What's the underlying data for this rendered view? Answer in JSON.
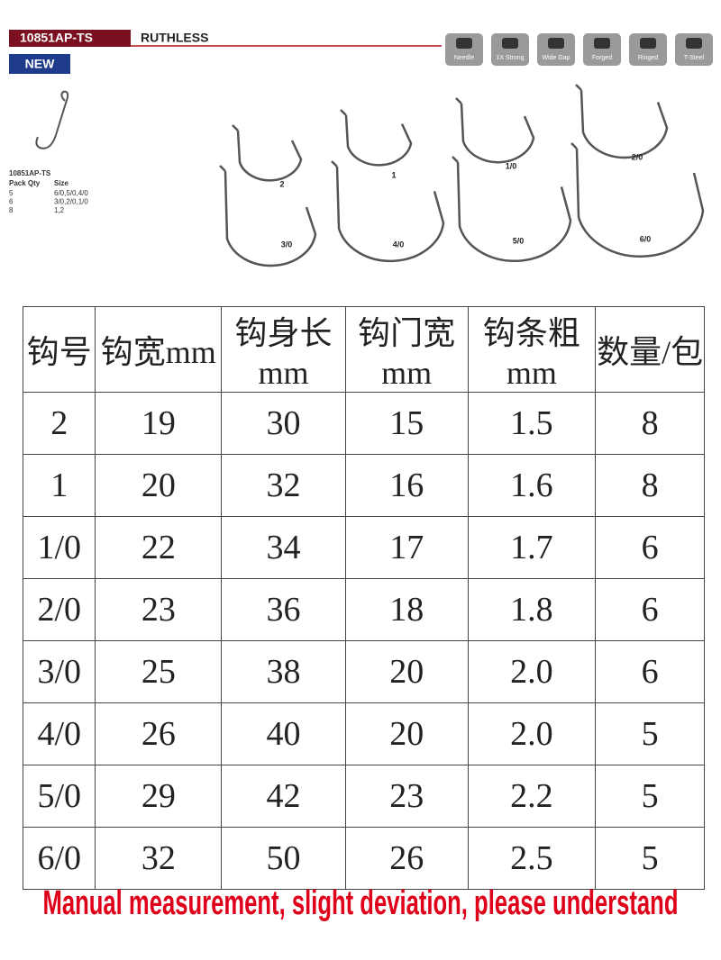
{
  "header": {
    "model": "10851AP-TS",
    "name": "RUTHLESS",
    "badge": "NEW",
    "icons": [
      "Needle",
      "1X Strong",
      "Wide Gap",
      "Forged",
      "Ringed",
      "T-Steel"
    ]
  },
  "pack_info": {
    "model": "10851AP-TS",
    "header": [
      "Pack Qty",
      "Size"
    ],
    "rows": [
      [
        "5",
        "6/0,5/0,4/0"
      ],
      [
        "6",
        "3/0,2/0,1/0"
      ],
      [
        "8",
        "1,2"
      ]
    ]
  },
  "hook_labels": [
    "2",
    "1",
    "1/0",
    "2/0",
    "3/0",
    "4/0",
    "5/0",
    "6/0"
  ],
  "table": {
    "header": [
      "钩号",
      "钩宽mm",
      "钩身长mm",
      "钩门宽mm",
      "钩条粗mm",
      "数量/包"
    ],
    "rows": [
      [
        "2",
        "19",
        "30",
        "15",
        "1.5",
        "8"
      ],
      [
        "1",
        "20",
        "32",
        "16",
        "1.6",
        "8"
      ],
      [
        "1/0",
        "22",
        "34",
        "17",
        "1.7",
        "6"
      ],
      [
        "2/0",
        "23",
        "36",
        "18",
        "1.8",
        "6"
      ],
      [
        "3/0",
        "25",
        "38",
        "20",
        "2.0",
        "6"
      ],
      [
        "4/0",
        "26",
        "40",
        "20",
        "2.0",
        "5"
      ],
      [
        "5/0",
        "29",
        "42",
        "23",
        "2.2",
        "5"
      ],
      [
        "6/0",
        "32",
        "50",
        "26",
        "2.5",
        "5"
      ]
    ]
  },
  "footer": {
    "note": "Manual measurement, slight deviation, please understand"
  }
}
